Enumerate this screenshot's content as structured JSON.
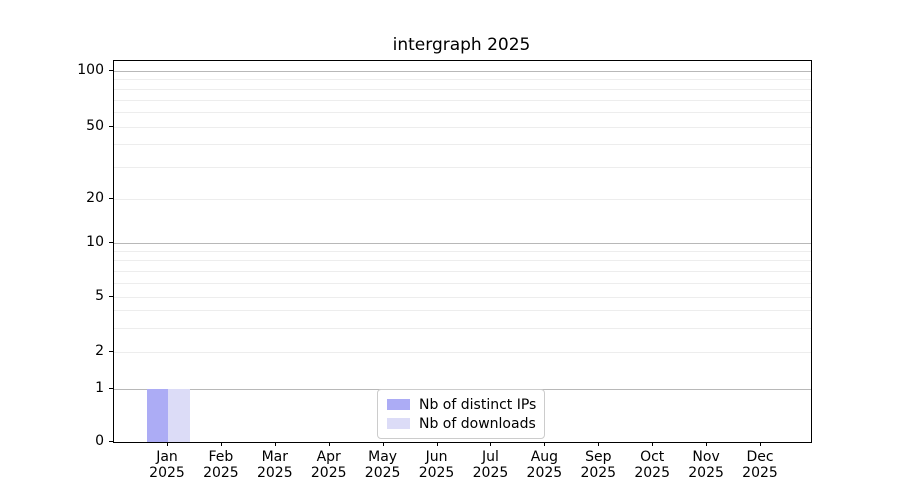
{
  "chart_data": {
    "type": "bar",
    "title": "intergraph 2025",
    "categories": [
      "Jan",
      "Feb",
      "Mar",
      "Apr",
      "May",
      "Jun",
      "Jul",
      "Aug",
      "Sep",
      "Oct",
      "Nov",
      "Dec"
    ],
    "year_label": "2025",
    "series": [
      {
        "name": "Nb of distinct IPs",
        "color": "#acacf5",
        "values": [
          1,
          0,
          0,
          0,
          0,
          0,
          0,
          0,
          0,
          0,
          0,
          0
        ]
      },
      {
        "name": "Nb of downloads",
        "color": "#dcdcf7",
        "values": [
          1,
          0,
          0,
          0,
          0,
          0,
          0,
          0,
          0,
          0,
          0,
          0
        ]
      }
    ],
    "xlabel": "",
    "ylabel": "",
    "y_axis": {
      "scale": "symlog",
      "tick_values": [
        100,
        50,
        20,
        10,
        5,
        2,
        1,
        0
      ],
      "ylim": [
        0,
        100
      ]
    },
    "grid": {
      "enabled": true,
      "major_values": [
        100,
        10,
        1
      ],
      "minor_values": [
        90,
        80,
        70,
        60,
        50,
        40,
        30,
        20,
        9,
        8,
        7,
        6,
        5,
        4,
        3,
        2
      ],
      "major_color": "#b8b8b8",
      "minor_color": "#ededed"
    },
    "legend": {
      "position": "lower center",
      "entries": [
        "Nb of distinct IPs",
        "Nb of downloads"
      ]
    },
    "colors": {
      "spine": "#000000",
      "text": "#000000",
      "background": "#ffffff"
    }
  }
}
